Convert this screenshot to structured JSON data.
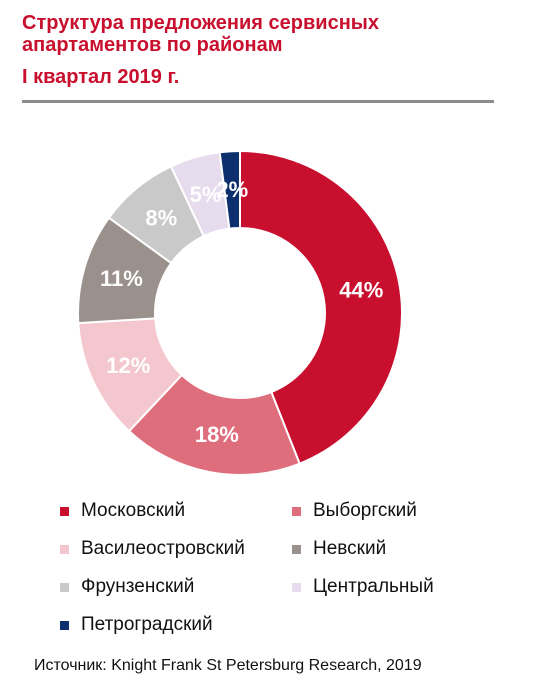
{
  "title": "Структура предложения сервисных апартаментов по районам",
  "subtitle": "I квартал 2019 г.",
  "source": "Источник: Knight Frank St Petersburg Research, 2019",
  "chart_data": {
    "type": "pie",
    "title": "Структура предложения сервисных апартаментов по районам",
    "subtitle": "I квартал 2019 г.",
    "categories": [
      "Московский",
      "Выборгский",
      "Василеостровский",
      "Невский",
      "Фрунзенский",
      "Центральный",
      "Петроградский"
    ],
    "values": [
      44,
      18,
      12,
      11,
      8,
      5,
      2
    ],
    "labels": [
      "44%",
      "18%",
      "12%",
      "11%",
      "8%",
      "5%",
      "2%"
    ],
    "colors": [
      "#c8102e",
      "#df6e7c",
      "#f3c7cd",
      "#9a918c",
      "#c9c9c9",
      "#e6dced",
      "#0d2f6e"
    ],
    "legend_position": "bottom",
    "legend": [
      {
        "label": "Московский",
        "color": "#c8102e"
      },
      {
        "label": "Выборгский",
        "color": "#df6e7c"
      },
      {
        "label": "Василеостровский",
        "color": "#f3c7cd"
      },
      {
        "label": "Невский",
        "color": "#9a918c"
      },
      {
        "label": "Фрунзенский",
        "color": "#c9c9c9"
      },
      {
        "label": "Центральный",
        "color": "#e6dced"
      },
      {
        "label": "Петроградский",
        "color": "#0d2f6e"
      }
    ]
  }
}
